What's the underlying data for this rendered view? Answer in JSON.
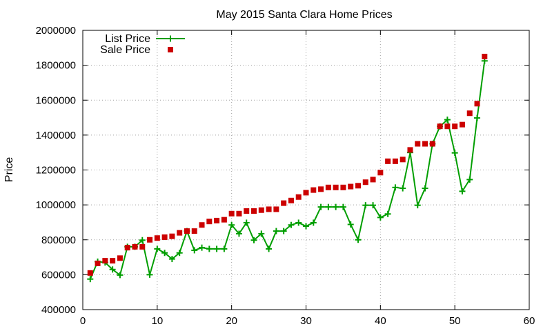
{
  "chart_data": {
    "type": "line",
    "title": "May 2015 Santa Clara Home Prices",
    "xlabel": "",
    "ylabel": "Price",
    "xlim": [
      0,
      60
    ],
    "ylim": [
      400000,
      2000000
    ],
    "xticks": [
      "0",
      "10",
      "20",
      "30",
      "40",
      "50",
      "60"
    ],
    "yticks": [
      "400000",
      "600000",
      "800000",
      "1000000",
      "1200000",
      "1400000",
      "1600000",
      "1800000",
      "2000000"
    ],
    "grid": true,
    "legend_position": "top-left",
    "series": [
      {
        "name": "List Price",
        "type": "line",
        "marker": "plus",
        "color": "#009e00",
        "x": [
          1,
          2,
          3,
          4,
          5,
          6,
          7,
          8,
          9,
          10,
          11,
          12,
          13,
          14,
          15,
          16,
          17,
          18,
          19,
          20,
          21,
          22,
          23,
          24,
          25,
          26,
          27,
          28,
          29,
          30,
          31,
          32,
          33,
          34,
          35,
          36,
          37,
          38,
          39,
          40,
          41,
          42,
          43,
          44,
          45,
          46,
          47,
          48,
          49,
          50,
          51,
          52,
          53,
          54
        ],
        "y": [
          575000,
          675000,
          670000,
          630000,
          598000,
          760000,
          760000,
          798000,
          600000,
          748000,
          725000,
          690000,
          725000,
          850000,
          740000,
          755000,
          748000,
          748000,
          748000,
          885000,
          835000,
          898000,
          798000,
          835000,
          748000,
          850000,
          850000,
          885000,
          898000,
          878000,
          898000,
          988000,
          988000,
          988000,
          988000,
          888000,
          800000,
          998000,
          998000,
          928000,
          948000,
          1100000,
          1095000,
          1300000,
          998000,
          1095000,
          1350000,
          1450000,
          1488000,
          1298000,
          1078000,
          1145000,
          1498000,
          1825000
        ]
      },
      {
        "name": "Sale Price",
        "type": "scatter",
        "marker": "square",
        "color": "#cc0000",
        "x": [
          1,
          2,
          3,
          4,
          5,
          6,
          7,
          8,
          9,
          10,
          11,
          12,
          13,
          14,
          15,
          16,
          17,
          18,
          19,
          20,
          21,
          22,
          23,
          24,
          25,
          26,
          27,
          28,
          29,
          30,
          31,
          32,
          33,
          34,
          35,
          36,
          37,
          38,
          39,
          40,
          41,
          42,
          43,
          44,
          45,
          46,
          47,
          48,
          49,
          50,
          51,
          52,
          53,
          54
        ],
        "y": [
          610000,
          665000,
          680000,
          680000,
          695000,
          755000,
          760000,
          760000,
          800000,
          810000,
          815000,
          820000,
          840000,
          850000,
          850000,
          885000,
          905000,
          910000,
          915000,
          950000,
          950000,
          965000,
          965000,
          970000,
          975000,
          975000,
          1010000,
          1025000,
          1045000,
          1070000,
          1085000,
          1090000,
          1100000,
          1100000,
          1100000,
          1105000,
          1110000,
          1130000,
          1145000,
          1185000,
          1250000,
          1250000,
          1260000,
          1315000,
          1350000,
          1350000,
          1350000,
          1450000,
          1450000,
          1450000,
          1460000,
          1525000,
          1580000,
          1850000
        ]
      }
    ]
  }
}
